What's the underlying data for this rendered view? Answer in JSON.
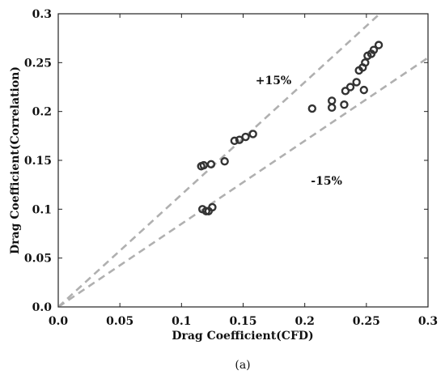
{
  "chart_data": {
    "type": "scatter",
    "xlabel": "Drag Coefficient(CFD)",
    "ylabel": "Drag Coefficient(Correlation)",
    "xlim": [
      0,
      0.3
    ],
    "ylim": [
      0,
      0.3
    ],
    "x_ticks": [
      "0.0",
      "0.05",
      "0.1",
      "0.15",
      "0.2",
      "0.25",
      "0.3"
    ],
    "y_ticks": [
      "0.0",
      "0.05",
      "0.1",
      "0.15",
      "0.2",
      "0.25",
      "0.3"
    ],
    "grid": false,
    "legend": "none",
    "marker_color": "#333333",
    "reference_line_color": "#b0b0b0",
    "reference_lines": [
      {
        "label": "+15%",
        "slope": 1.15,
        "label_at": [
          0.16,
          0.228
        ]
      },
      {
        "label": "-15%",
        "slope": 0.85,
        "label_at": [
          0.205,
          0.125
        ]
      }
    ],
    "points": [
      {
        "x": 0.116,
        "y": 0.144
      },
      {
        "x": 0.118,
        "y": 0.145
      },
      {
        "x": 0.124,
        "y": 0.146
      },
      {
        "x": 0.117,
        "y": 0.1
      },
      {
        "x": 0.12,
        "y": 0.098
      },
      {
        "x": 0.122,
        "y": 0.098
      },
      {
        "x": 0.125,
        "y": 0.102
      },
      {
        "x": 0.135,
        "y": 0.149
      },
      {
        "x": 0.143,
        "y": 0.17
      },
      {
        "x": 0.147,
        "y": 0.171
      },
      {
        "x": 0.152,
        "y": 0.174
      },
      {
        "x": 0.158,
        "y": 0.177
      },
      {
        "x": 0.206,
        "y": 0.203
      },
      {
        "x": 0.222,
        "y": 0.211
      },
      {
        "x": 0.222,
        "y": 0.204
      },
      {
        "x": 0.232,
        "y": 0.207
      },
      {
        "x": 0.233,
        "y": 0.221
      },
      {
        "x": 0.237,
        "y": 0.225
      },
      {
        "x": 0.242,
        "y": 0.23
      },
      {
        "x": 0.244,
        "y": 0.242
      },
      {
        "x": 0.247,
        "y": 0.245
      },
      {
        "x": 0.249,
        "y": 0.25
      },
      {
        "x": 0.251,
        "y": 0.257
      },
      {
        "x": 0.254,
        "y": 0.259
      },
      {
        "x": 0.256,
        "y": 0.263
      },
      {
        "x": 0.26,
        "y": 0.268
      },
      {
        "x": 0.248,
        "y": 0.222
      }
    ]
  },
  "caption": "(a)"
}
